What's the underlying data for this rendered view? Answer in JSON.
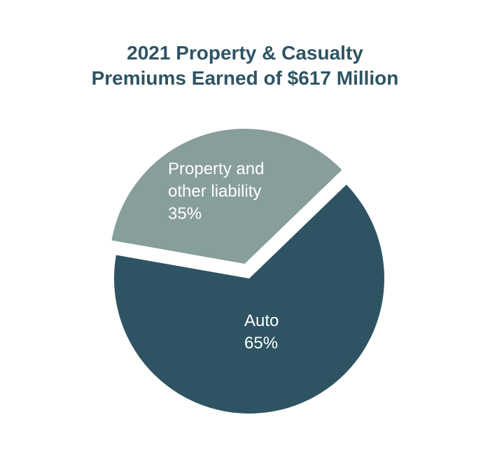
{
  "chart_data": {
    "type": "pie",
    "title_lines": [
      "2021 Property & Casualty",
      "Premiums Earned of $617 Million"
    ],
    "slices": [
      {
        "name": "Auto",
        "label_lines": [
          "Auto",
          "65%"
        ],
        "value": 65,
        "color": "#2e5463",
        "exploded": false
      },
      {
        "name": "Property and other liability",
        "label_lines": [
          "Property and",
          "other liability",
          "35%"
        ],
        "value": 35,
        "color": "#879e9b",
        "exploded": true
      }
    ]
  }
}
